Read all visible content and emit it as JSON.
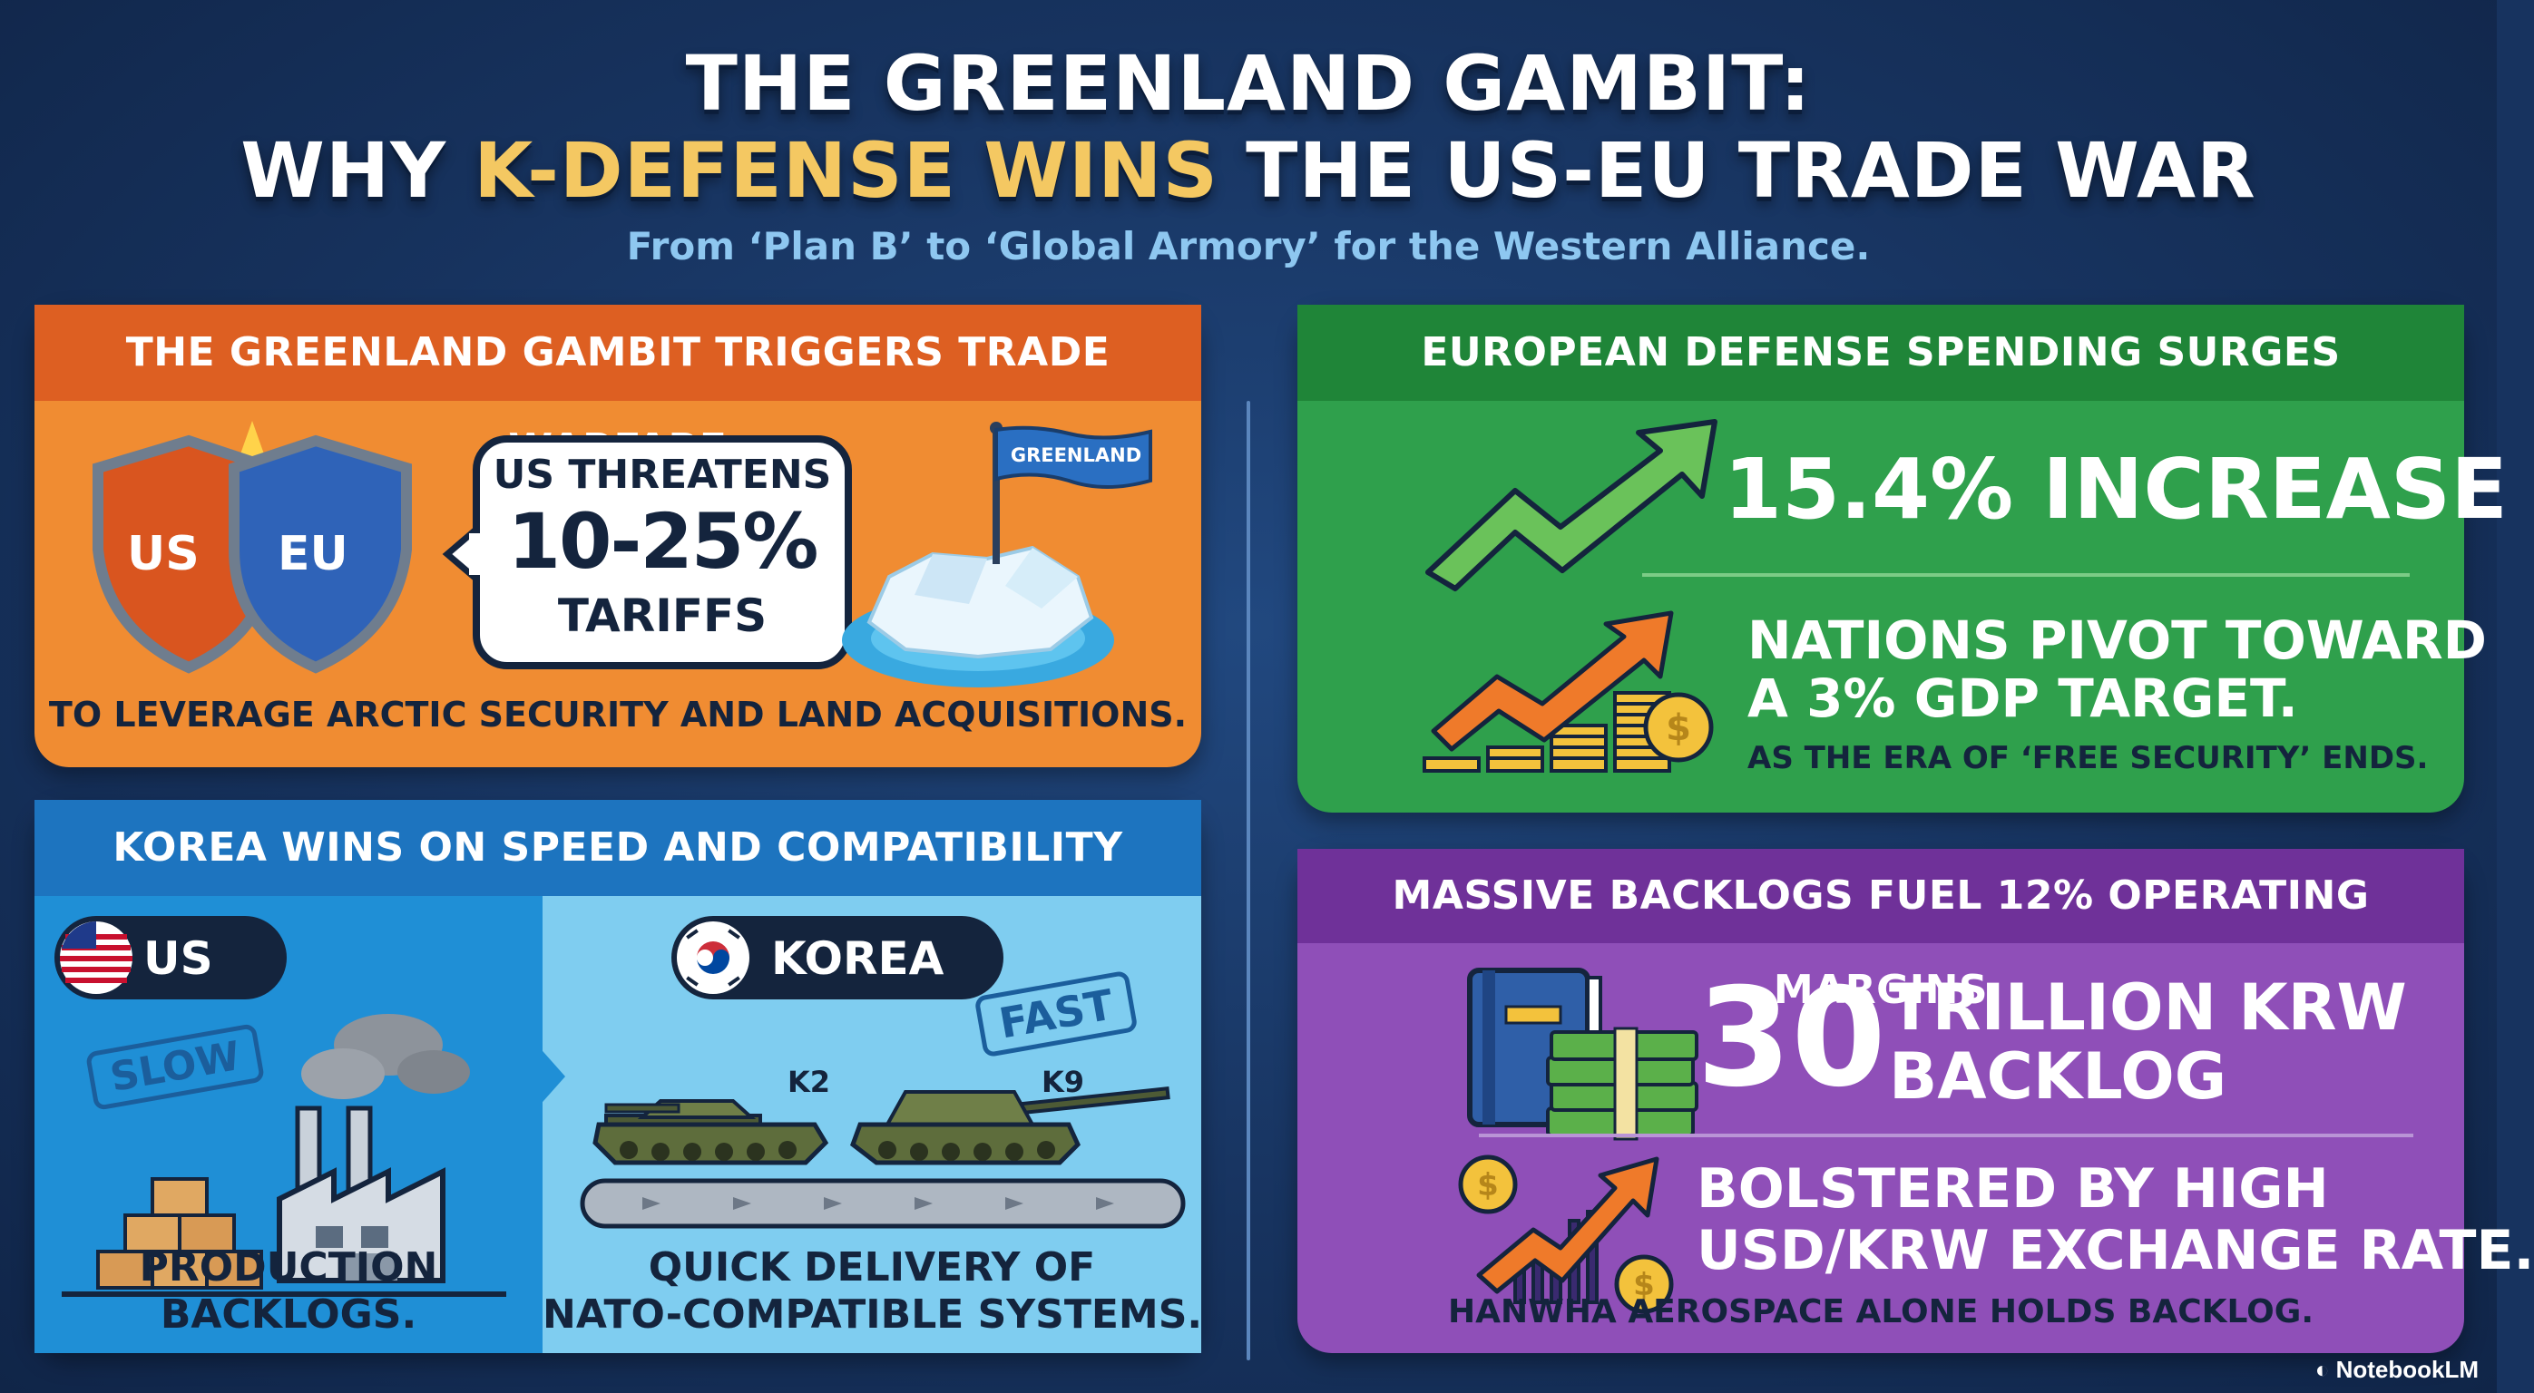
{
  "header": {
    "title_line1": "THE GREENLAND GAMBIT:",
    "title_line2_prefix": "WHY ",
    "title_line2_accent": "K-DEFENSE WINS",
    "title_line2_suffix": " THE US-EU TRADE WAR",
    "subtitle": "From ‘Plan B’ to ‘Global Armory’ for the Western Alliance."
  },
  "colors": {
    "title_accent": "#f4c862",
    "trade_panel": "#f08c32",
    "korea_panel": "#4ab6e8",
    "spending_panel": "#2fa04c",
    "backlog_panel": "#8f4fb8"
  },
  "trade_warfare": {
    "heading": "THE GREENLAND GAMBIT TRIGGERS TRADE WARFARE",
    "shield_left": "US",
    "shield_right": "EU",
    "bubble_line1": "US THREATENS",
    "bubble_line2": "10-25%",
    "bubble_line3": "TARIFFS",
    "flag_label": "GREENLAND",
    "caption": "TO LEVERAGE ARCTIC SECURITY AND LAND ACQUISITIONS.",
    "icons": [
      "shield-icon",
      "speech-bubble-icon",
      "flag-icon",
      "iceberg-icon"
    ]
  },
  "korea_wins": {
    "heading": "KOREA WINS ON SPEED AND COMPATIBILITY",
    "us_label": "US",
    "us_stamp": "SLOW",
    "us_caption_line1": "PRODUCTION",
    "us_caption_line2": "BACKLOGS.",
    "korea_label": "KOREA",
    "korea_stamp": "FAST",
    "tank1": "K2",
    "tank2": "K9",
    "korea_caption_line1": "QUICK DELIVERY OF",
    "korea_caption_line2": "NATO-COMPATIBLE SYSTEMS.",
    "icons": [
      "us-flag-icon",
      "factory-icon",
      "crates-icon",
      "korea-flag-icon",
      "tank-icon",
      "conveyor-icon"
    ]
  },
  "spending": {
    "heading": "EUROPEAN DEFENSE SPENDING SURGES",
    "stat": "15.4% INCREASE",
    "pivot_line1": "NATIONS PIVOT TOWARD",
    "pivot_line2": "A 3% GDP TARGET.",
    "note": "AS THE ERA OF ‘FREE SECURITY’ ENDS.",
    "icons": [
      "trend-up-arrow-icon",
      "coin-stack-icon"
    ]
  },
  "backlogs": {
    "heading": "MASSIVE BACKLOGS FUEL 12% OPERATING MARGINS",
    "stat_number": "30",
    "stat_line1": "TRILLION KRW",
    "stat_line2": "BACKLOG",
    "fx_line1": "BOLSTERED BY HIGH",
    "fx_line2": "USD/KRW EXCHANGE RATE.",
    "note": "HANWHA AEROSPACE ALONE HOLDS BACKLOG.",
    "icons": [
      "ledger-book-icon",
      "cash-stack-icon",
      "dollar-coin-icon",
      "growth-arrow-icon"
    ]
  },
  "footer": {
    "brand": "NotebookLM"
  }
}
